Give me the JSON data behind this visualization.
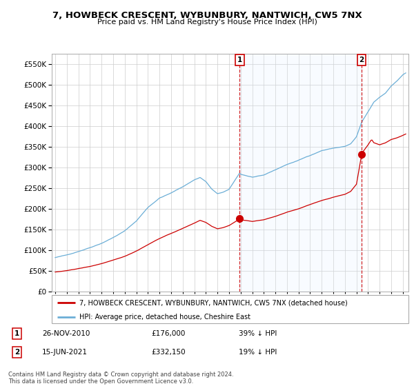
{
  "title": "7, HOWBECK CRESCENT, WYBUNBURY, NANTWICH, CW5 7NX",
  "subtitle": "Price paid vs. HM Land Registry's House Price Index (HPI)",
  "legend_line1": "7, HOWBECK CRESCENT, WYBUNBURY, NANTWICH, CW5 7NX (detached house)",
  "legend_line2": "HPI: Average price, detached house, Cheshire East",
  "footnote": "Contains HM Land Registry data © Crown copyright and database right 2024.\nThis data is licensed under the Open Government Licence v3.0.",
  "transaction1": {
    "num": "1",
    "date": "26-NOV-2010",
    "price": "£176,000",
    "pct": "39% ↓ HPI",
    "year": 2010.92
  },
  "transaction2": {
    "num": "2",
    "date": "15-JUN-2021",
    "price": "£332,150",
    "pct": "19% ↓ HPI",
    "year": 2021.45
  },
  "ylim": [
    0,
    575000
  ],
  "xlim": [
    1994.7,
    2025.5
  ],
  "hpi_color": "#6baed6",
  "property_color": "#cc0000",
  "marker_color": "#cc0000",
  "shade_color": "#ddeeff",
  "marker1_prop": 176000,
  "marker2_prop": 332150
}
